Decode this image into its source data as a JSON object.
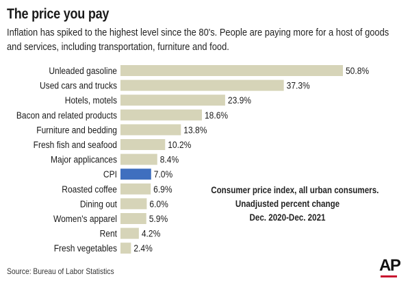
{
  "header": {
    "title": "The price you pay",
    "subtitle": "Inflation has spiked to the highest level since the 80's. People are paying more for a host of goods and services, including transportation, furniture and food."
  },
  "note": {
    "line1": "Consumer price index, all urban consumers.",
    "line2": "Unadjusted percent change",
    "line3": "Dec. 2020-Dec. 2021"
  },
  "footer": {
    "source": "Source: Bureau of Labor Statistics",
    "logo": "AP"
  },
  "colors": {
    "bar": "#d6d4b8",
    "highlight": "#3f6fbf",
    "text": "#1a1a1a",
    "logo_accent": "#c8102e"
  },
  "chart_data": {
    "type": "bar",
    "orientation": "horizontal",
    "categories": [
      "Unleaded gasoline",
      "Used cars and trucks",
      "Hotels, motels",
      "Bacon and related products",
      "Furniture and bedding",
      "Fresh fish and seafood",
      "Major applicances",
      "CPI",
      "Roasted coffee",
      "Dining out",
      "Women's apparel",
      "Rent",
      "Fresh vegetables"
    ],
    "values": [
      50.8,
      37.3,
      23.9,
      18.6,
      13.8,
      10.2,
      8.4,
      7.0,
      6.9,
      6.0,
      5.9,
      4.2,
      2.4
    ],
    "labels": [
      "50.8%",
      "37.3%",
      "23.9%",
      "18.6%",
      "13.8%",
      "10.2%",
      "8.4%",
      "7.0%",
      "6.9%",
      "6.0%",
      "5.9%",
      "4.2%",
      "2.4%"
    ],
    "highlight": "CPI",
    "unit": "%",
    "xlim": [
      0,
      50.8
    ],
    "grid": false,
    "legend": "none"
  }
}
